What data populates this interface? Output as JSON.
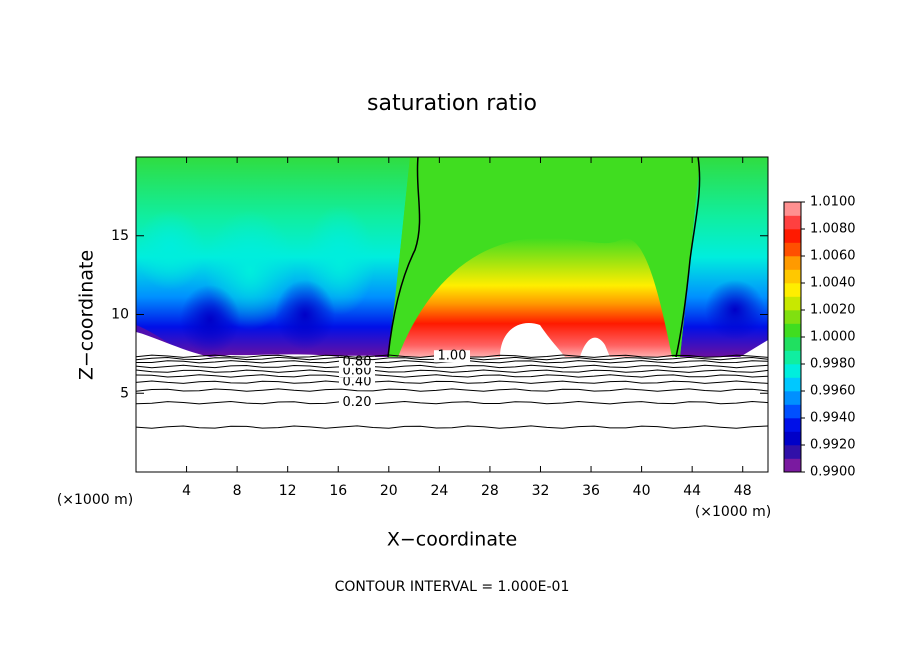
{
  "chart_data": {
    "type": "contour",
    "title": "saturation ratio",
    "x_label": "X−coordinate",
    "y_label": "Z−coordinate",
    "x_unit_left": "(×1000 m)",
    "x_unit_right": "(×1000 m)",
    "footnote": "CONTOUR INTERVAL = 1.000E-01",
    "xlim": [
      0,
      50
    ],
    "ylim": [
      0,
      20
    ],
    "xticks": [
      4,
      8,
      12,
      16,
      20,
      24,
      28,
      32,
      36,
      40,
      44,
      48
    ],
    "yticks": [
      5,
      10,
      15
    ],
    "contour_levels": [
      0.1,
      {
        "value": 0.2,
        "label": "0.20"
      },
      0.3,
      {
        "value": 0.4,
        "label": "0.40"
      },
      0.5,
      {
        "value": 0.6,
        "label": "0.60"
      },
      0.7,
      {
        "value": 0.8,
        "label": "0.80"
      },
      0.9,
      {
        "value": 1.0,
        "label": "1.00"
      }
    ],
    "contour_z": [
      2.85,
      4.4,
      5.2,
      5.7,
      6.1,
      6.4,
      6.7,
      7.0,
      7.2,
      7.35
    ],
    "colorbar": {
      "lim": [
        0.99,
        1.01
      ],
      "ticks": [
        {
          "value": 0.99,
          "label": "0.9900"
        },
        {
          "value": 0.992,
          "label": "0.9920"
        },
        {
          "value": 0.994,
          "label": "0.9940"
        },
        {
          "value": 0.996,
          "label": "0.9960"
        },
        {
          "value": 0.998,
          "label": "0.9980"
        },
        {
          "value": 1.0,
          "label": "1.0000"
        },
        {
          "value": 1.002,
          "label": "1.0020"
        },
        {
          "value": 1.004,
          "label": "1.0040"
        },
        {
          "value": 1.006,
          "label": "1.0060"
        },
        {
          "value": 1.008,
          "label": "1.0080"
        },
        {
          "value": 1.01,
          "label": "1.0100"
        }
      ],
      "colors": [
        "#7a1aa0",
        "#3010a8",
        "#0000c8",
        "#0010e8",
        "#0050ff",
        "#0090ff",
        "#00c8ff",
        "#00eedd",
        "#10eea0",
        "#20e060",
        "#40dd20",
        "#80e010",
        "#c8e800",
        "#ffee00",
        "#ffc800",
        "#ff9a00",
        "#ff5000",
        "#ff1a00",
        "#ff4040",
        "#ff9090"
      ]
    }
  }
}
